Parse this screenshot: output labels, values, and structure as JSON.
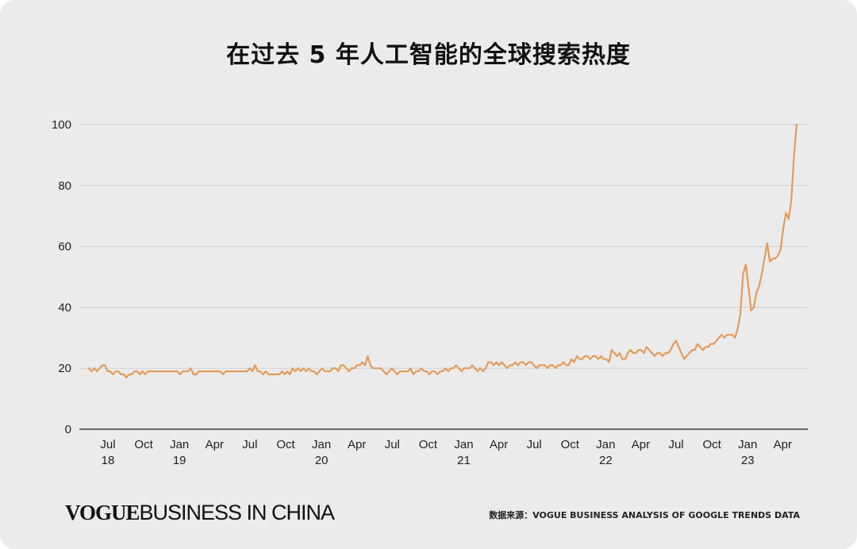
{
  "page": {
    "title": "在过去 5 年人工智能的全球搜索热度",
    "brand_logo": {
      "vogue": "VOGUE",
      "rest": "BUSINESS IN CHINA"
    },
    "source_note": "数据来源：VOGUE BUSINESS ANALYSIS OF GOOGLE TRENDS DATA"
  },
  "chart_data": {
    "type": "line",
    "title": "在过去 5 年人工智能的全球搜索热度",
    "xlabel": "",
    "ylabel": "",
    "x_start": "2018-05-13",
    "x_end": "2023-05-07",
    "ylim": [
      0,
      100
    ],
    "yticks": [
      0,
      20,
      40,
      60,
      80,
      100
    ],
    "grid": true,
    "line_color": "#e39b5b",
    "xticks": [
      {
        "month": "Jul",
        "year": "18",
        "date": "2018-07-01"
      },
      {
        "month": "Oct",
        "year": "",
        "date": "2018-10-01"
      },
      {
        "month": "Jan",
        "year": "19",
        "date": "2019-01-01"
      },
      {
        "month": "Apr",
        "year": "",
        "date": "2019-04-01"
      },
      {
        "month": "Jul",
        "year": "",
        "date": "2019-07-01"
      },
      {
        "month": "Oct",
        "year": "",
        "date": "2019-10-01"
      },
      {
        "month": "Jan",
        "year": "20",
        "date": "2020-01-01"
      },
      {
        "month": "Apr",
        "year": "",
        "date": "2020-04-01"
      },
      {
        "month": "Jul",
        "year": "",
        "date": "2020-07-01"
      },
      {
        "month": "Oct",
        "year": "",
        "date": "2020-10-01"
      },
      {
        "month": "Jan",
        "year": "21",
        "date": "2021-01-01"
      },
      {
        "month": "Apr",
        "year": "",
        "date": "2021-04-01"
      },
      {
        "month": "Jul",
        "year": "",
        "date": "2021-07-01"
      },
      {
        "month": "Oct",
        "year": "",
        "date": "2021-10-01"
      },
      {
        "month": "Jan",
        "year": "22",
        "date": "2022-01-01"
      },
      {
        "month": "Apr",
        "year": "",
        "date": "2022-04-01"
      },
      {
        "month": "Jul",
        "year": "",
        "date": "2022-07-01"
      },
      {
        "month": "Oct",
        "year": "",
        "date": "2022-10-01"
      },
      {
        "month": "Jan",
        "year": "23",
        "date": "2023-01-01"
      },
      {
        "month": "Apr",
        "year": "",
        "date": "2023-04-01"
      }
    ],
    "series": [
      {
        "values": [
          20,
          19,
          20,
          19,
          20,
          21,
          21,
          19,
          19,
          18,
          19,
          19,
          18,
          18,
          17,
          18,
          18,
          19,
          19,
          18,
          19,
          18,
          19,
          19,
          19,
          19,
          19,
          19,
          19,
          19,
          19,
          19,
          19,
          19,
          18,
          19,
          19,
          19,
          20,
          18,
          18,
          19,
          19,
          19,
          19,
          19,
          19,
          19,
          19,
          19,
          18,
          19,
          19,
          19,
          19,
          19,
          19,
          19,
          19,
          19,
          20,
          19,
          21,
          19,
          19,
          18,
          19,
          18,
          18,
          18,
          18,
          18,
          19,
          18,
          19,
          18,
          20,
          19,
          20,
          19,
          20,
          19,
          20,
          19,
          19,
          18,
          19,
          20,
          19,
          19,
          19,
          20,
          20,
          19,
          21,
          21,
          20,
          19,
          20,
          20,
          21,
          21,
          22,
          21,
          24,
          21,
          20,
          20,
          20,
          20,
          19,
          18,
          19,
          20,
          19,
          18,
          19,
          19,
          19,
          19,
          20,
          18,
          19,
          19,
          20,
          19,
          19,
          18,
          19,
          19,
          18,
          19,
          19,
          20,
          19,
          20,
          20,
          21,
          20,
          19,
          20,
          20,
          20,
          21,
          20,
          19,
          20,
          19,
          20,
          22,
          22,
          21,
          22,
          21,
          22,
          21,
          20,
          21,
          21,
          22,
          21,
          22,
          22,
          21,
          22,
          22,
          21,
          20,
          21,
          21,
          21,
          20,
          21,
          21,
          20,
          21,
          21,
          22,
          21,
          21,
          23,
          22,
          24,
          23,
          23,
          24,
          24,
          23,
          24,
          24,
          23,
          24,
          23,
          23,
          22,
          26,
          25,
          24,
          25,
          23,
          23,
          25,
          26,
          25,
          25,
          26,
          26,
          25,
          27,
          26,
          25,
          24,
          25,
          25,
          24,
          25,
          25,
          26,
          28,
          29,
          27,
          25,
          23,
          24,
          25,
          26,
          26,
          28,
          27,
          26,
          27,
          27,
          28,
          28,
          29,
          30,
          31,
          30,
          31,
          31,
          31,
          30,
          33,
          38,
          51,
          54,
          47,
          39,
          40,
          45,
          47,
          51,
          56,
          61,
          55,
          56,
          56,
          57,
          59,
          66,
          71,
          69,
          75,
          90,
          100
        ]
      }
    ]
  }
}
